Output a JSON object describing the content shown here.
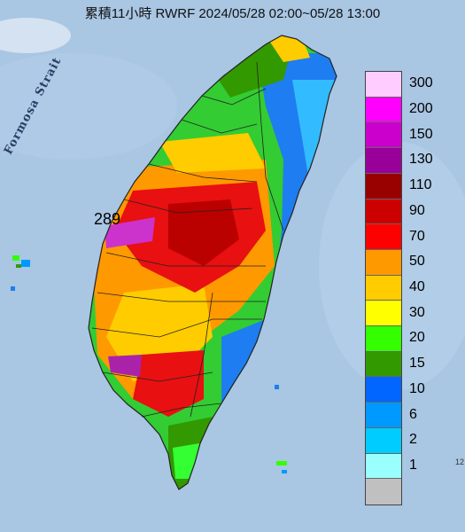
{
  "title": "累積11小時 RWRF 2024/05/28 02:00~05/28 13:00",
  "map_label": "Formosa Strait",
  "max_marker": "289",
  "edge_text": "12",
  "legend": [
    {
      "label": "300",
      "color": "#ffccff"
    },
    {
      "label": "200",
      "color": "#ff00ff"
    },
    {
      "label": "150",
      "color": "#cc00cc"
    },
    {
      "label": "130",
      "color": "#990099"
    },
    {
      "label": "110",
      "color": "#990000"
    },
    {
      "label": "90",
      "color": "#cc0000"
    },
    {
      "label": "70",
      "color": "#ff0000"
    },
    {
      "label": "50",
      "color": "#ff9900"
    },
    {
      "label": "40",
      "color": "#ffcc00"
    },
    {
      "label": "30",
      "color": "#ffff00"
    },
    {
      "label": "20",
      "color": "#33ff00"
    },
    {
      "label": "15",
      "color": "#339900"
    },
    {
      "label": "10",
      "color": "#0066ff"
    },
    {
      "label": "6",
      "color": "#0099ff"
    },
    {
      "label": "2",
      "color": "#00ccff"
    },
    {
      "label": "1",
      "color": "#99ffff"
    },
    {
      "label": "",
      "color": "#c0c0c0"
    }
  ]
}
